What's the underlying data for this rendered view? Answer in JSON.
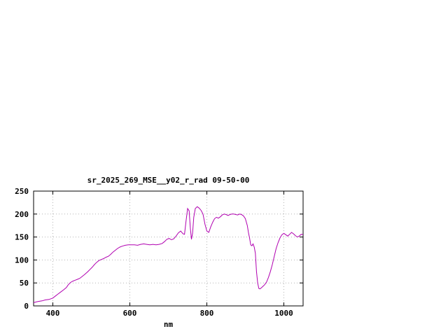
{
  "chart": {
    "title": "sr_2025_269_MSE__y02_r_rad 09-50-00",
    "xlabel": "nm"
  },
  "chart_data": {
    "type": "line",
    "title": "sr_2025_269_MSE__y02_r_rad 09-50-00",
    "xlabel": "nm",
    "ylabel": "",
    "xlim": [
      350,
      1050
    ],
    "ylim": [
      0,
      250
    ],
    "x_ticks": [
      400,
      600,
      800,
      1000
    ],
    "y_ticks": [
      0,
      50,
      100,
      150,
      200,
      250
    ],
    "grid": true,
    "legend": "none",
    "line_color": "#b000b0",
    "points": [
      [
        350,
        7
      ],
      [
        358,
        9
      ],
      [
        365,
        10
      ],
      [
        372,
        11
      ],
      [
        380,
        13
      ],
      [
        390,
        14
      ],
      [
        400,
        17
      ],
      [
        406,
        21
      ],
      [
        412,
        25
      ],
      [
        420,
        30
      ],
      [
        428,
        35
      ],
      [
        435,
        40
      ],
      [
        440,
        46
      ],
      [
        446,
        51
      ],
      [
        452,
        54
      ],
      [
        458,
        56
      ],
      [
        464,
        58
      ],
      [
        470,
        60
      ],
      [
        476,
        64
      ],
      [
        482,
        68
      ],
      [
        490,
        74
      ],
      [
        496,
        79
      ],
      [
        502,
        84
      ],
      [
        508,
        90
      ],
      [
        514,
        95
      ],
      [
        520,
        99
      ],
      [
        526,
        101
      ],
      [
        532,
        103
      ],
      [
        538,
        106
      ],
      [
        544,
        108
      ],
      [
        550,
        112
      ],
      [
        556,
        117
      ],
      [
        562,
        121
      ],
      [
        568,
        125
      ],
      [
        574,
        128
      ],
      [
        580,
        130
      ],
      [
        588,
        132
      ],
      [
        596,
        133
      ],
      [
        604,
        133
      ],
      [
        612,
        133
      ],
      [
        620,
        132
      ],
      [
        628,
        134
      ],
      [
        636,
        135
      ],
      [
        644,
        134
      ],
      [
        652,
        133
      ],
      [
        660,
        134
      ],
      [
        668,
        133
      ],
      [
        676,
        134
      ],
      [
        684,
        136
      ],
      [
        690,
        140
      ],
      [
        696,
        145
      ],
      [
        702,
        147
      ],
      [
        708,
        144
      ],
      [
        714,
        146
      ],
      [
        720,
        152
      ],
      [
        726,
        159
      ],
      [
        732,
        163
      ],
      [
        738,
        157
      ],
      [
        742,
        156
      ],
      [
        746,
        185
      ],
      [
        750,
        212
      ],
      [
        754,
        207
      ],
      [
        757,
        170
      ],
      [
        760,
        145
      ],
      [
        763,
        158
      ],
      [
        766,
        193
      ],
      [
        770,
        212
      ],
      [
        775,
        216
      ],
      [
        780,
        213
      ],
      [
        785,
        208
      ],
      [
        790,
        200
      ],
      [
        795,
        178
      ],
      [
        800,
        163
      ],
      [
        805,
        160
      ],
      [
        810,
        172
      ],
      [
        815,
        182
      ],
      [
        820,
        190
      ],
      [
        825,
        193
      ],
      [
        830,
        191
      ],
      [
        835,
        194
      ],
      [
        840,
        198
      ],
      [
        845,
        200
      ],
      [
        850,
        199
      ],
      [
        855,
        197
      ],
      [
        860,
        199
      ],
      [
        865,
        200
      ],
      [
        870,
        200
      ],
      [
        875,
        199
      ],
      [
        880,
        198
      ],
      [
        885,
        200
      ],
      [
        890,
        199
      ],
      [
        895,
        196
      ],
      [
        900,
        190
      ],
      [
        905,
        175
      ],
      [
        908,
        160
      ],
      [
        911,
        148
      ],
      [
        914,
        133
      ],
      [
        917,
        131
      ],
      [
        920,
        135
      ],
      [
        923,
        128
      ],
      [
        926,
        115
      ],
      [
        929,
        75
      ],
      [
        932,
        50
      ],
      [
        935,
        38
      ],
      [
        938,
        37
      ],
      [
        941,
        39
      ],
      [
        945,
        42
      ],
      [
        950,
        46
      ],
      [
        955,
        52
      ],
      [
        960,
        62
      ],
      [
        965,
        75
      ],
      [
        970,
        90
      ],
      [
        975,
        108
      ],
      [
        980,
        125
      ],
      [
        985,
        138
      ],
      [
        990,
        148
      ],
      [
        995,
        155
      ],
      [
        1000,
        158
      ],
      [
        1005,
        155
      ],
      [
        1010,
        152
      ],
      [
        1015,
        156
      ],
      [
        1020,
        160
      ],
      [
        1025,
        157
      ],
      [
        1030,
        153
      ],
      [
        1035,
        150
      ],
      [
        1040,
        152
      ],
      [
        1045,
        156
      ],
      [
        1050,
        155
      ]
    ]
  }
}
